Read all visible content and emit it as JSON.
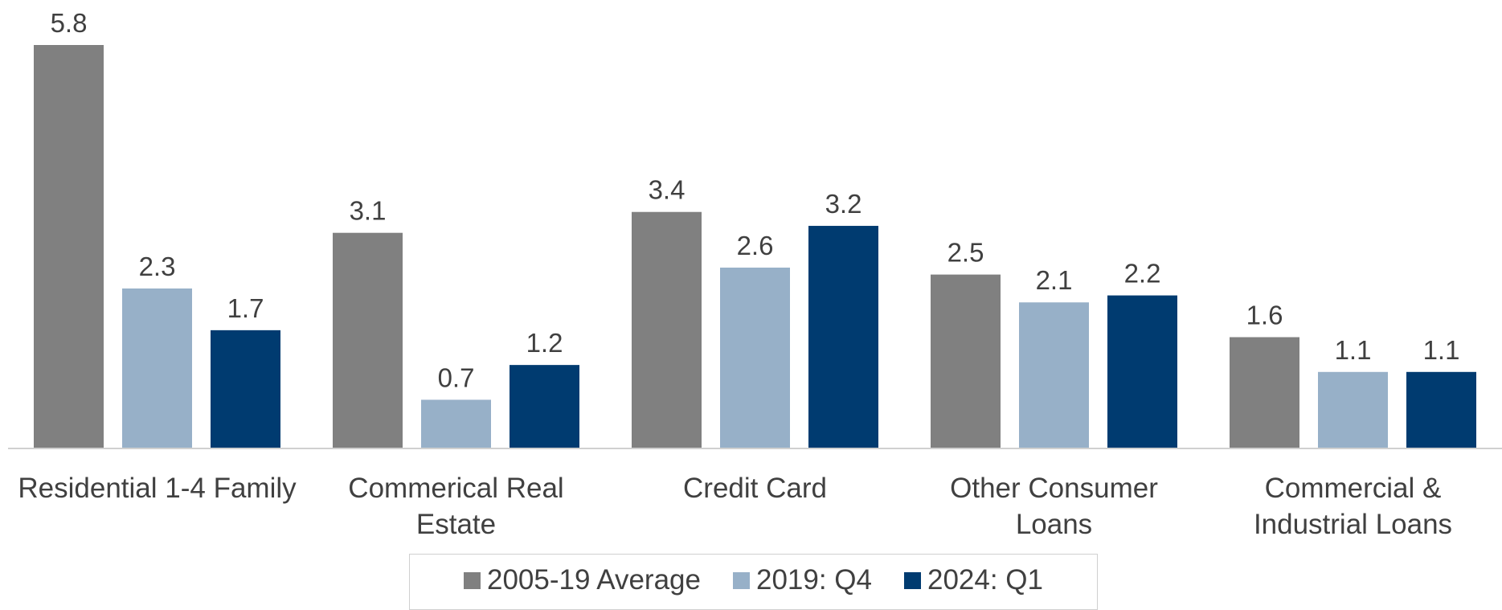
{
  "chart_data": {
    "type": "bar",
    "categories": [
      "Residential 1-4 Family",
      "Commerical Real Estate",
      "Credit Card",
      "Other Consumer Loans",
      "Commercial & Industrial Loans"
    ],
    "series": [
      {
        "name": "2005-19 Average",
        "color": "#808080",
        "values": [
          5.8,
          3.1,
          3.4,
          2.5,
          1.6
        ]
      },
      {
        "name": "2019: Q4",
        "color": "#97b0c8",
        "values": [
          2.3,
          0.7,
          2.6,
          2.1,
          1.1
        ]
      },
      {
        "name": "2024: Q1",
        "color": "#003b70",
        "values": [
          1.7,
          1.2,
          3.2,
          2.2,
          1.1
        ]
      }
    ]
  }
}
